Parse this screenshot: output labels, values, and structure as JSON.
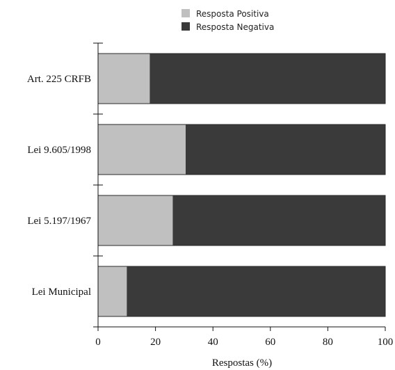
{
  "chart_data": {
    "type": "bar",
    "orientation": "horizontal",
    "stacked": true,
    "categories": [
      "Art. 225 CRFB",
      "Lei 9.605/1998",
      "Lei 5.197/1967",
      "Lei Municipal"
    ],
    "series": [
      {
        "name": "Resposta Positiva",
        "values": [
          18,
          30.5,
          26,
          10
        ],
        "color": "#c0c0c0"
      },
      {
        "name": "Resposta Negativa",
        "values": [
          82,
          69.5,
          74,
          90
        ],
        "color": "#3a3a3a"
      }
    ],
    "xlabel": "Respostas (%)",
    "ylabel": "",
    "xlim": [
      0,
      100
    ],
    "xticks": [
      "0",
      "20",
      "40",
      "60",
      "80",
      "100"
    ],
    "grid": false,
    "legend_position": "top-center"
  }
}
